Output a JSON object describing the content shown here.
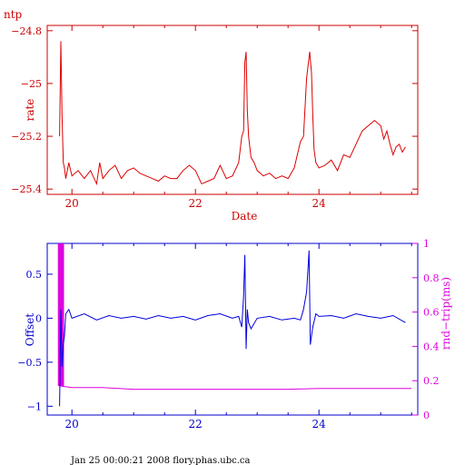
{
  "page": {
    "corner_label": "ntp",
    "footer": "Jan 25 00:00:21 2008 flory.phas.ubc.ca"
  },
  "colors": {
    "top": "#cc0000",
    "bottom": "#0000cc",
    "secondary": "#dd00dd",
    "background": "#ffffff"
  },
  "chart_data": [
    {
      "type": "line",
      "ylabel": "rate",
      "xlabel": "Date",
      "xlim": [
        19.6,
        25.6
      ],
      "ylim": [
        -25.42,
        -24.78
      ],
      "xticks": [
        20,
        22,
        24
      ],
      "xtick_labels": [
        "20",
        "22",
        "24"
      ],
      "yticks": [
        -24.8,
        -25.0,
        -25.2,
        -25.4
      ],
      "ytick_labels": [
        "−24.8",
        "−25",
        "−25.2",
        "−25.4"
      ],
      "series": [
        {
          "x": [
            19.8,
            19.82,
            19.84,
            19.86,
            19.88,
            19.9,
            19.95,
            20.0,
            20.1,
            20.2,
            20.3,
            20.4,
            20.45,
            20.5,
            20.6,
            20.7,
            20.8,
            20.9,
            21.0,
            21.1,
            21.2,
            21.3,
            21.4,
            21.5,
            21.6,
            21.7,
            21.8,
            21.9,
            22.0,
            22.1,
            22.2,
            22.3,
            22.4,
            22.5,
            22.6,
            22.7,
            22.75,
            22.78,
            22.8,
            22.82,
            22.84,
            22.86,
            22.9,
            22.95,
            23.0,
            23.1,
            23.2,
            23.3,
            23.4,
            23.5,
            23.6,
            23.7,
            23.75,
            23.8,
            23.85,
            23.88,
            23.9,
            23.92,
            23.95,
            24.0,
            24.1,
            24.2,
            24.3,
            24.4,
            24.5,
            24.6,
            24.7,
            24.8,
            24.9,
            25.0,
            25.05,
            25.1,
            25.15,
            25.2,
            25.25,
            25.3,
            25.35,
            25.4
          ],
          "y": [
            -25.2,
            -24.84,
            -25.12,
            -25.3,
            -25.32,
            -25.36,
            -25.3,
            -25.35,
            -25.33,
            -25.36,
            -25.33,
            -25.38,
            -25.3,
            -25.36,
            -25.33,
            -25.31,
            -25.36,
            -25.33,
            -25.32,
            -25.34,
            -25.35,
            -25.36,
            -25.37,
            -25.35,
            -25.36,
            -25.36,
            -25.33,
            -25.31,
            -25.33,
            -25.38,
            -25.37,
            -25.36,
            -25.31,
            -25.36,
            -25.35,
            -25.3,
            -25.2,
            -25.18,
            -24.92,
            -24.88,
            -25.1,
            -25.2,
            -25.28,
            -25.3,
            -25.33,
            -25.35,
            -25.34,
            -25.36,
            -25.35,
            -25.36,
            -25.32,
            -25.22,
            -25.2,
            -24.98,
            -24.88,
            -24.96,
            -25.12,
            -25.25,
            -25.3,
            -25.32,
            -25.31,
            -25.29,
            -25.33,
            -25.27,
            -25.28,
            -25.23,
            -25.18,
            -25.16,
            -25.14,
            -25.16,
            -25.21,
            -25.18,
            -25.23,
            -25.27,
            -25.24,
            -25.23,
            -25.26,
            -25.24
          ]
        }
      ]
    },
    {
      "type": "line",
      "ylabel": "Offset",
      "ylabel_right": "rnd−trip(ms)",
      "xlim": [
        19.6,
        25.6
      ],
      "ylim": [
        -1.1,
        0.85
      ],
      "ylim_right": [
        0,
        1
      ],
      "xticks": [
        20,
        22,
        24
      ],
      "xtick_labels": [
        "20",
        "22",
        "24"
      ],
      "yticks": [
        0.5,
        0,
        -0.5,
        -1
      ],
      "ytick_labels": [
        "0.5",
        "0",
        "−0.5",
        "−1"
      ],
      "yticks_right": [
        0,
        0.2,
        0.4,
        0.6,
        0.8,
        1
      ],
      "ytick_labels_right": [
        "0",
        "0.2",
        "0.4",
        "0.6",
        "0.8",
        "1"
      ],
      "series": [
        {
          "axis": "left",
          "x": [
            19.8,
            19.82,
            19.84,
            19.86,
            19.88,
            19.9,
            19.95,
            20.0,
            20.2,
            20.4,
            20.6,
            20.8,
            21.0,
            21.2,
            21.4,
            21.6,
            21.8,
            22.0,
            22.2,
            22.4,
            22.6,
            22.7,
            22.75,
            22.78,
            22.8,
            22.82,
            22.84,
            22.86,
            22.9,
            23.0,
            23.2,
            23.4,
            23.6,
            23.7,
            23.75,
            23.8,
            23.84,
            23.86,
            23.88,
            23.9,
            23.95,
            24.0,
            24.2,
            24.4,
            24.6,
            24.8,
            25.0,
            25.2,
            25.4
          ],
          "y": [
            -1.0,
            0.1,
            -0.55,
            -0.3,
            -0.2,
            0.05,
            0.1,
            0.0,
            0.05,
            -0.02,
            0.03,
            0.0,
            0.02,
            -0.01,
            0.03,
            0.0,
            0.02,
            -0.02,
            0.03,
            0.05,
            0.0,
            0.02,
            -0.1,
            0.25,
            0.72,
            -0.35,
            0.1,
            -0.05,
            -0.12,
            0.0,
            0.02,
            -0.02,
            0.0,
            -0.02,
            0.1,
            0.3,
            0.77,
            -0.3,
            -0.2,
            -0.1,
            0.05,
            0.02,
            0.03,
            0.0,
            0.05,
            0.02,
            0.0,
            0.03,
            -0.05
          ]
        },
        {
          "axis": "right",
          "x": [
            19.8,
            19.9,
            20.0,
            20.5,
            21.0,
            21.5,
            22.0,
            22.5,
            23.0,
            23.5,
            24.0,
            24.5,
            25.0,
            25.5
          ],
          "y": [
            0.17,
            0.165,
            0.16,
            0.16,
            0.15,
            0.15,
            0.15,
            0.15,
            0.15,
            0.15,
            0.155,
            0.155,
            0.155,
            0.155
          ]
        }
      ]
    }
  ]
}
